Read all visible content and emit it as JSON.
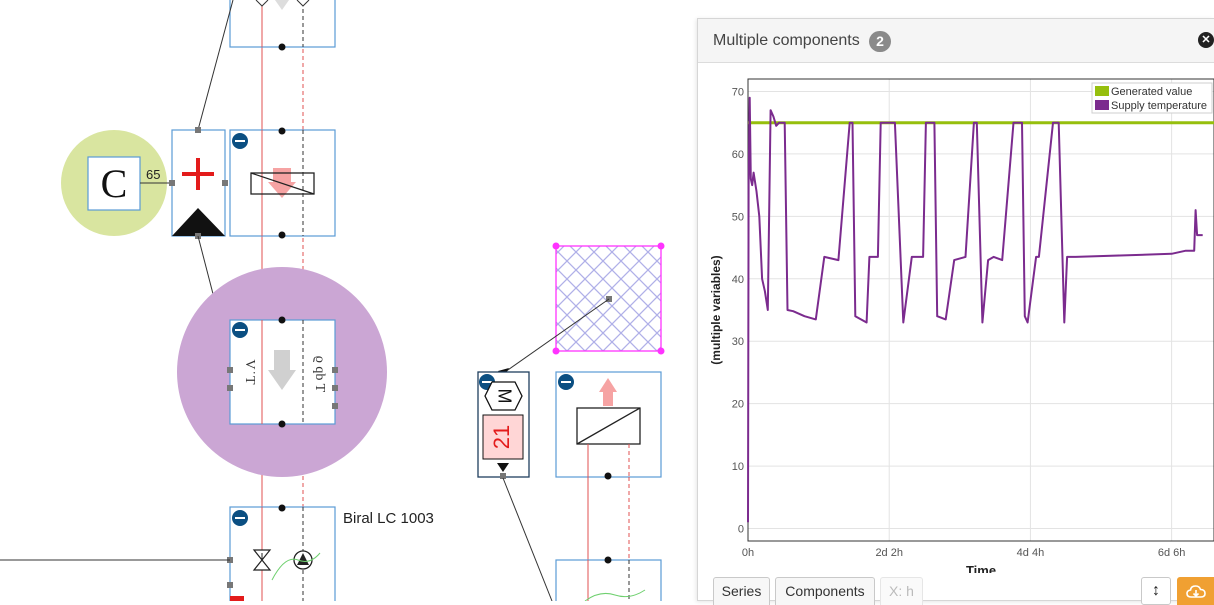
{
  "diagram": {
    "controller_letter": "C",
    "controller_value": "65",
    "motor_letter": "M",
    "motor_value": "21",
    "pump_label": "Biral LC 1003",
    "sensor_left_label": "V ̇ T",
    "sensor_right_label": "ϱ qb T"
  },
  "panel": {
    "title": "Multiple components",
    "badge": "2",
    "close_icon": "close-icon",
    "tabs": {
      "series": "Series",
      "components": "Components",
      "xaxis": "X: h"
    },
    "resize_icon": "↕",
    "download_icon": "cloud-download-icon"
  },
  "chart_data": {
    "type": "line",
    "title": "",
    "xlabel": "Time",
    "ylabel": "(multiple variables)",
    "xlim": [
      0,
      165
    ],
    "ylim": [
      -2,
      72
    ],
    "xticks": [
      {
        "value": 0,
        "label": "0h"
      },
      {
        "value": 50,
        "label": "2d 2h"
      },
      {
        "value": 100,
        "label": "4d 4h"
      },
      {
        "value": 150,
        "label": "6d 6h"
      }
    ],
    "yticks": [
      0,
      10,
      20,
      30,
      40,
      50,
      60,
      70
    ],
    "grid": true,
    "legend": "top-right",
    "series": [
      {
        "name": "Generated value",
        "color": "#96bf0d",
        "x": [
          0,
          165
        ],
        "y": [
          65,
          65
        ]
      },
      {
        "name": "Supply temperature",
        "color": "#7b2b8e",
        "x": [
          0,
          0.2,
          0.6,
          1,
          1.5,
          2,
          3,
          4,
          5,
          6,
          7,
          8,
          9,
          10,
          11,
          12,
          13,
          14,
          16,
          20,
          24,
          27,
          32,
          36,
          37,
          38,
          42,
          43,
          46,
          47,
          52,
          55,
          58,
          62,
          63,
          66,
          67,
          70,
          73,
          77,
          80,
          81,
          83,
          85,
          87,
          90,
          94,
          97,
          98,
          99,
          102,
          103,
          108,
          110,
          112,
          113,
          116,
          150,
          155,
          158,
          158.5,
          159,
          160,
          161
        ],
        "y": [
          1,
          55,
          69,
          56,
          55,
          57,
          54,
          50,
          40,
          38,
          35,
          67,
          66,
          64.5,
          65,
          65,
          65,
          35,
          34.8,
          34,
          33.5,
          43.5,
          43,
          65,
          65,
          34,
          33,
          43.5,
          43.5,
          65,
          65,
          33,
          43.5,
          43.5,
          65,
          65,
          34,
          33.5,
          43,
          43.5,
          65,
          65,
          33,
          43,
          43.5,
          43,
          65,
          65,
          34,
          33,
          43.5,
          43.5,
          65,
          65,
          33,
          43.5,
          43.5,
          44,
          44.5,
          44.5,
          51,
          47,
          47,
          47
        ]
      }
    ]
  }
}
